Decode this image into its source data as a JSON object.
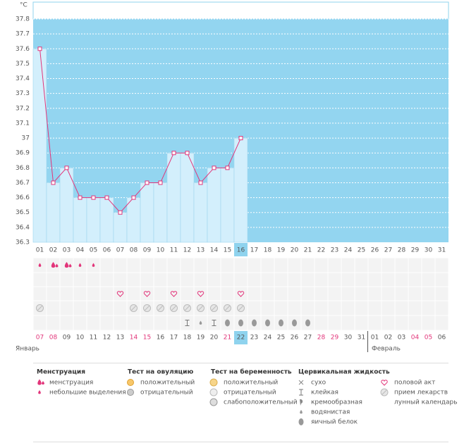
{
  "chart_data": {
    "type": "line",
    "y_label": "°C",
    "categories": [
      "01",
      "02",
      "03",
      "04",
      "05",
      "06",
      "07",
      "08",
      "09",
      "10",
      "11",
      "12",
      "13",
      "14",
      "15",
      "16",
      "17",
      "18",
      "19",
      "20",
      "21",
      "22",
      "23",
      "24",
      "25",
      "26",
      "27",
      "28",
      "29",
      "30",
      "31"
    ],
    "values": [
      37.6,
      36.7,
      36.8,
      36.6,
      36.6,
      36.6,
      36.5,
      36.6,
      36.7,
      36.7,
      36.9,
      36.9,
      36.7,
      36.8,
      36.8,
      37.0,
      null,
      null,
      null,
      null,
      null,
      null,
      null,
      null,
      null,
      null,
      null,
      null,
      null,
      null,
      null
    ],
    "color": "#e2357a",
    "ylim": [
      36.3,
      37.8
    ],
    "yticks": [
      36.3,
      36.4,
      36.5,
      36.6,
      36.7,
      36.8,
      36.9,
      37,
      37.1,
      37.2,
      37.3,
      37.4,
      37.5,
      37.6,
      37.7,
      37.8
    ],
    "grid": true
  },
  "calendar": {
    "dates": [
      {
        "text": "07",
        "color": "#e2357a"
      },
      {
        "text": "08",
        "color": "#e2357a"
      },
      {
        "text": "09",
        "color": "#555555"
      },
      {
        "text": "10",
        "color": "#555555"
      },
      {
        "text": "11",
        "color": "#555555"
      },
      {
        "text": "12",
        "color": "#555555"
      },
      {
        "text": "13",
        "color": "#555555"
      },
      {
        "text": "14",
        "color": "#e2357a"
      },
      {
        "text": "15",
        "color": "#e2357a"
      },
      {
        "text": "16",
        "color": "#555555"
      },
      {
        "text": "17",
        "color": "#555555"
      },
      {
        "text": "18",
        "color": "#555555"
      },
      {
        "text": "19",
        "color": "#555555"
      },
      {
        "text": "20",
        "color": "#555555"
      },
      {
        "text": "21",
        "color": "#e2357a"
      },
      {
        "text": "22",
        "color": "#555555"
      },
      {
        "text": "23",
        "color": "#555555"
      },
      {
        "text": "24",
        "color": "#555555"
      },
      {
        "text": "25",
        "color": "#555555"
      },
      {
        "text": "26",
        "color": "#555555"
      },
      {
        "text": "27",
        "color": "#555555"
      },
      {
        "text": "28",
        "color": "#e2357a"
      },
      {
        "text": "29",
        "color": "#e2357a"
      },
      {
        "text": "30",
        "color": "#555555"
      },
      {
        "text": "31",
        "color": "#555555"
      },
      {
        "text": "01",
        "color": "#555555"
      },
      {
        "text": "02",
        "color": "#555555"
      },
      {
        "text": "03",
        "color": "#555555"
      },
      {
        "text": "04",
        "color": "#e2357a"
      },
      {
        "text": "05",
        "color": "#e2357a"
      },
      {
        "text": "06",
        "color": "#555555"
      }
    ],
    "months": [
      "Январь",
      "Февраль"
    ]
  },
  "legend": [
    {
      "title": "Менструация",
      "items": [
        "менструация",
        "небольшие выделения"
      ]
    },
    {
      "title": "Тест на овуляцию",
      "items": [
        "положительный",
        "отрицательный"
      ]
    },
    {
      "title": "Тест на беременность",
      "items": [
        "положительный",
        "отрицательный",
        "слабоположительный"
      ]
    },
    {
      "title": "Цервикальная жидкость",
      "items": [
        "сухо",
        "клейкая",
        "кремообразная",
        "водянистая",
        "яичный белок"
      ]
    },
    {
      "items": [
        "половой акт",
        "прием лекарств",
        "лунный календарь"
      ]
    }
  ]
}
